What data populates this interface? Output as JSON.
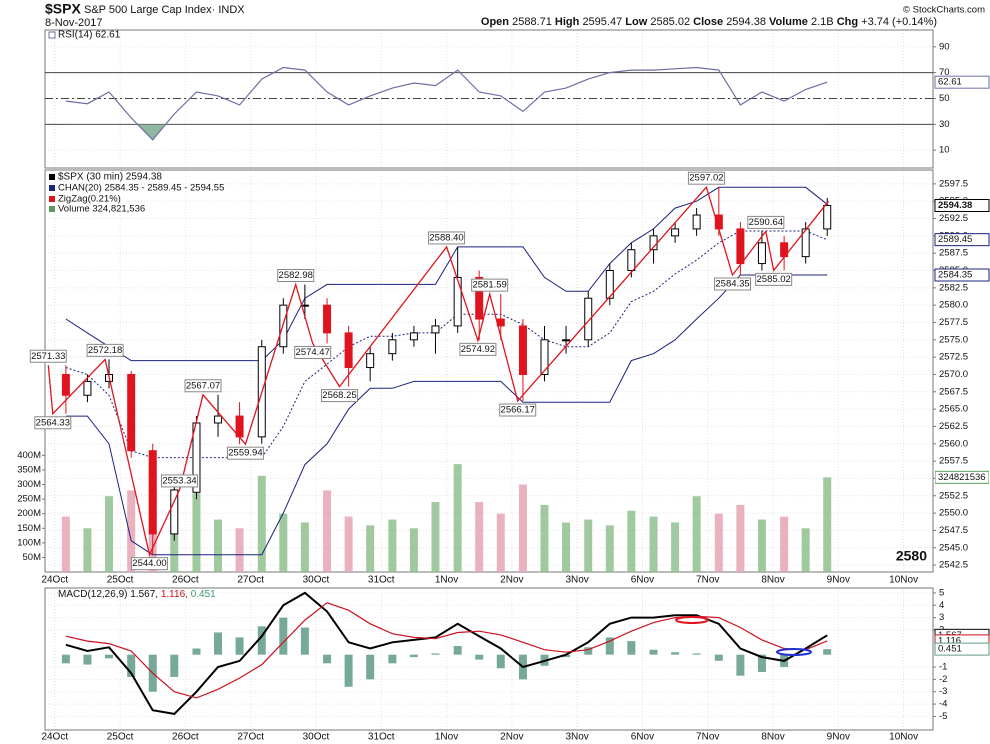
{
  "header": {
    "symbol": "$SPX",
    "name": "S&P 500 Large Cap Index· INDX",
    "date": "8-Nov-2017",
    "quote": [
      [
        "Open",
        "2588.71"
      ],
      [
        "High",
        "2595.47"
      ],
      [
        "Low",
        "2585.02"
      ],
      [
        "Close",
        "2594.38"
      ],
      [
        "Volume",
        "2.1B"
      ],
      [
        "Chg",
        "+3.74 (+0.14%)"
      ]
    ],
    "credit": "© StockCharts.com"
  },
  "chart_data": [
    {
      "type": "line",
      "x": [
        0.17,
        0.5,
        0.83,
        1.17,
        1.5,
        1.83,
        2.17,
        2.5,
        2.83,
        3.17,
        3.5,
        3.83,
        4.17,
        4.5,
        4.83,
        5.17,
        5.5,
        5.83,
        6.17,
        6.5,
        6.83,
        7.17,
        7.5,
        7.83,
        8.17,
        8.5,
        8.83,
        9.17,
        9.5,
        9.83,
        10.17,
        10.5,
        10.83,
        11.17,
        11.5,
        11.83
      ],
      "xlim": [
        -0.15,
        13.45
      ],
      "series": [
        {
          "name": "RSI(14) 62.61",
          "color": "#6c6fa3",
          "values": [
            48,
            46,
            55,
            35,
            18,
            38,
            55,
            52,
            45,
            65,
            74,
            72,
            55,
            45,
            52,
            58,
            62,
            60,
            72,
            55,
            52,
            40,
            55,
            58,
            65,
            70,
            72,
            72,
            73,
            74,
            72,
            45,
            55,
            48,
            57,
            62.61
          ]
        }
      ],
      "ylim": [
        -3.8,
        103
      ],
      "yticks": [
        90,
        70,
        50,
        30,
        10
      ],
      "reference_lines": [
        {
          "value": 70,
          "dash": false
        },
        {
          "value": 50,
          "dash": true
        },
        {
          "value": 30,
          "dash": false
        }
      ],
      "oversold_fill_color": "#8fb8a0",
      "grid": true
    },
    {
      "type": "candlestick",
      "name": "$SPX (30 min) 2594.38",
      "x": [
        0.17,
        0.5,
        0.83,
        1.17,
        1.5,
        1.83,
        2.17,
        2.5,
        2.83,
        3.17,
        3.5,
        3.83,
        4.17,
        4.5,
        4.83,
        5.17,
        5.5,
        5.83,
        6.17,
        6.5,
        6.83,
        7.17,
        7.5,
        7.83,
        8.17,
        8.5,
        8.83,
        9.17,
        9.5,
        9.83,
        10.17,
        10.5,
        10.83,
        11.17,
        11.5,
        11.83
      ],
      "xlim": [
        -0.15,
        13.45
      ],
      "xticks": [
        {
          "value": 0,
          "label": "24Oct"
        },
        {
          "value": 1,
          "label": "25Oct"
        },
        {
          "value": 2,
          "label": "26Oct"
        },
        {
          "value": 3,
          "label": "27Oct"
        },
        {
          "value": 4,
          "label": "30Oct"
        },
        {
          "value": 5,
          "label": "31Oct"
        },
        {
          "value": 6,
          "label": "1Nov"
        },
        {
          "value": 7,
          "label": "2Nov"
        },
        {
          "value": 8,
          "label": "3Nov"
        },
        {
          "value": 9,
          "label": "6Nov"
        },
        {
          "value": 10,
          "label": "7Nov"
        },
        {
          "value": 11,
          "label": "8Nov"
        },
        {
          "value": 12,
          "label": "9Nov"
        },
        {
          "value": 13,
          "label": "10Nov"
        }
      ],
      "open": [
        2570,
        2567,
        2569,
        2570,
        2559,
        2547,
        2553,
        2563,
        2564,
        2561,
        2574,
        2580,
        2580,
        2576,
        2571,
        2573,
        2575,
        2576,
        2577,
        2584,
        2578,
        2577,
        2570,
        2575,
        2575,
        2581,
        2585,
        2588,
        2590,
        2591,
        2593,
        2591,
        2586,
        2589,
        2587,
        2591
      ],
      "high": [
        2571.33,
        2570,
        2572.18,
        2570.5,
        2560,
        2555,
        2564,
        2567.07,
        2566,
        2575,
        2581,
        2582.98,
        2581,
        2577,
        2574,
        2576,
        2577,
        2578,
        2588.4,
        2585,
        2581.59,
        2578,
        2577,
        2577,
        2582,
        2586,
        2589,
        2591,
        2592,
        2594,
        2597.02,
        2592,
        2590.64,
        2590,
        2592,
        2595.47
      ],
      "low": [
        2564.33,
        2566,
        2568,
        2558,
        2544,
        2546,
        2552,
        2561,
        2559.94,
        2560,
        2573,
        2578,
        2574.47,
        2568.25,
        2569,
        2572,
        2574,
        2573,
        2576,
        2574.92,
        2575,
        2566.17,
        2569,
        2573,
        2574,
        2580,
        2584,
        2586,
        2589,
        2590,
        2590,
        2584.35,
        2585,
        2585.02,
        2586,
        2590
      ],
      "close": [
        2567,
        2569,
        2570,
        2559,
        2547,
        2553.34,
        2563,
        2564,
        2561,
        2574,
        2580,
        2580,
        2576,
        2571,
        2573,
        2575,
        2576,
        2577,
        2584,
        2578,
        2577,
        2570,
        2575,
        2575,
        2581,
        2585,
        2588,
        2590,
        2591,
        2593,
        2591,
        2586,
        2589,
        2587,
        2591,
        2594.38
      ],
      "up_color": "#000000",
      "down_color": "#e0141e",
      "ylim": [
        2541.5,
        2599.5
      ],
      "yticks": [
        2597.5,
        {
          "value": 2595,
          "label": "2595.0"
        },
        2592.5,
        {
          "value": 2590,
          "label": "2590.0"
        },
        2587.5,
        {
          "value": 2585,
          "label": "2585.0"
        },
        2582.5,
        {
          "value": 2580,
          "label": "2580.0"
        },
        2577.5,
        {
          "value": 2575,
          "label": "2575.0"
        },
        2572.5,
        {
          "value": 2570,
          "label": "2570.0"
        },
        2567.5,
        {
          "value": 2565,
          "label": "2565.0"
        },
        2562.5,
        {
          "value": 2560,
          "label": "2560.0"
        },
        2557.5,
        {
          "value": 2555,
          "label": "2555.0"
        },
        2552.5,
        {
          "value": 2550,
          "label": "2550.0"
        },
        2547.5,
        {
          "value": 2545,
          "label": "2545.0"
        },
        2542.5
      ],
      "grid": true,
      "channel": {
        "name": "CHAN(20) 2584.35 - 2589.45 - 2594.55",
        "color": "#1a237e",
        "upper": [
          2578,
          2576,
          2574,
          2572,
          2572,
          2572,
          2572,
          2572,
          2572,
          2572,
          2575,
          2581,
          2583,
          2583,
          2583,
          2583,
          2583,
          2583,
          2588.4,
          2588.4,
          2588.4,
          2588.4,
          2584,
          2582,
          2582,
          2586,
          2589,
          2591,
          2594,
          2595,
          2597,
          2597,
          2597,
          2597,
          2597,
          2594.55
        ],
        "middle": [
          2571,
          2570,
          2567,
          2559,
          2558,
          2558,
          2558,
          2558,
          2558,
          2558,
          2562.5,
          2569,
          2571.5,
          2574,
          2575.5,
          2575.5,
          2576,
          2576,
          2578.7,
          2578.7,
          2578.7,
          2577.2,
          2575,
          2574,
          2574,
          2576,
          2580.5,
          2582,
          2584.5,
          2586.5,
          2589,
          2590.7,
          2590.7,
          2590.7,
          2590.7,
          2589.45
        ],
        "lower": [
          2564,
          2564,
          2560,
          2546,
          2544,
          2544,
          2544,
          2544,
          2544,
          2544,
          2550,
          2557,
          2560,
          2565,
          2568,
          2568,
          2569,
          2569,
          2569,
          2569,
          2569,
          2566,
          2566,
          2566,
          2566,
          2566,
          2572,
          2573,
          2575,
          2578,
          2581,
          2584.35,
          2584.35,
          2584.35,
          2584.35,
          2584.35
        ]
      },
      "zigzag": {
        "name": "ZigZag(0.21%)",
        "color": "#e0141e",
        "x": [
          -0.1,
          -0.03,
          0.77,
          1.45,
          1.91,
          2.27,
          2.92,
          3.69,
          3.95,
          4.36,
          6.0,
          6.48,
          6.66,
          7.09,
          9.98,
          10.38,
          10.89,
          11.01,
          11.85
        ],
        "values": [
          2571.33,
          2564.33,
          2572.18,
          2544,
          2553.34,
          2567.07,
          2559.94,
          2582.98,
          2574.47,
          2568.25,
          2588.4,
          2574.92,
          2581.59,
          2566.17,
          2597.02,
          2584.35,
          2590.64,
          2585.02,
          2595
        ],
        "value_labels": [
          "2571.33",
          "2564.33",
          "2572.18",
          "2544.00",
          "2553.34",
          "2567.07",
          "2559.94",
          "2582.98",
          "2574.47",
          "2568.25",
          "2588.40",
          "2574.92",
          "2581.59",
          "2566.17",
          "2597.02",
          "2584.35",
          "2590.64",
          "2585.02",
          null
        ]
      },
      "volume": {
        "name": "Volume 324,821,536",
        "up_color": "#8fbf8f",
        "down_color": "#e6a3b4",
        "values": [
          190000000,
          150000000,
          260000000,
          280000000,
          380000000,
          240000000,
          270000000,
          180000000,
          150000000,
          330000000,
          200000000,
          170000000,
          280000000,
          190000000,
          160000000,
          180000000,
          150000000,
          240000000,
          370000000,
          240000000,
          200000000,
          300000000,
          230000000,
          170000000,
          180000000,
          160000000,
          210000000,
          190000000,
          170000000,
          260000000,
          200000000,
          230000000,
          180000000,
          190000000,
          150000000,
          324821536
        ],
        "ylim": [
          0,
          1379000000
        ],
        "yticks": [
          {
            "value": 400000000,
            "label": "400M"
          },
          {
            "value": 350000000,
            "label": "350M"
          },
          {
            "value": 300000000,
            "label": "300M"
          },
          {
            "value": 250000000,
            "label": "250M"
          },
          {
            "value": 200000000,
            "label": "200M"
          },
          {
            "value": 150000000,
            "label": "150M"
          },
          {
            "value": 100000000,
            "label": "100M"
          },
          {
            "value": 50000000,
            "label": "50M"
          }
        ]
      },
      "annotation": "2580"
    },
    {
      "type": "line",
      "legend": [
        "MACD(12,26,9) 1.567,",
        "1.116,",
        "0.451"
      ],
      "x": [
        0.17,
        0.5,
        0.83,
        1.17,
        1.5,
        1.83,
        2.17,
        2.5,
        2.83,
        3.17,
        3.5,
        3.83,
        4.17,
        4.5,
        4.83,
        5.17,
        5.5,
        5.83,
        6.17,
        6.5,
        6.83,
        7.17,
        7.5,
        7.83,
        8.17,
        8.5,
        8.83,
        9.17,
        9.5,
        9.83,
        10.17,
        10.5,
        10.83,
        11.17,
        11.5,
        11.83
      ],
      "xlim": [
        -0.15,
        13.45
      ],
      "xticks": [
        {
          "value": 0,
          "label": "24Oct"
        },
        {
          "value": 1,
          "label": "25Oct"
        },
        {
          "value": 2,
          "label": "26Oct"
        },
        {
          "value": 3,
          "label": "27Oct"
        },
        {
          "value": 4,
          "label": "30Oct"
        },
        {
          "value": 5,
          "label": "31Oct"
        },
        {
          "value": 6,
          "label": "1Nov"
        },
        {
          "value": 7,
          "label": "2Nov"
        },
        {
          "value": 8,
          "label": "3Nov"
        },
        {
          "value": 9,
          "label": "6Nov"
        },
        {
          "value": 10,
          "label": "7Nov"
        },
        {
          "value": 11,
          "label": "8Nov"
        },
        {
          "value": 12,
          "label": "9Nov"
        },
        {
          "value": 13,
          "label": "10Nov"
        }
      ],
      "series": [
        {
          "color": "#000000",
          "values": [
            0.8,
            0.3,
            0.6,
            -1.5,
            -4.5,
            -4.8,
            -3,
            -1,
            -0.5,
            1.5,
            4,
            5,
            3.5,
            1,
            0.5,
            1,
            1.2,
            1.4,
            2.5,
            1.5,
            0.5,
            -1,
            -0.5,
            0,
            1,
            2.5,
            3,
            3,
            3.2,
            3.2,
            2.5,
            0.5,
            -0.2,
            -0.5,
            0.5,
            1.567
          ]
        },
        {
          "color": "#cc1020",
          "values": [
            1.5,
            1.1,
            0.9,
            0.3,
            -1.5,
            -3,
            -3.5,
            -2.8,
            -1.9,
            -0.8,
            1,
            2.8,
            4.2,
            3.6,
            2.5,
            1.7,
            1.4,
            1.3,
            1.8,
            1.9,
            1.6,
            1,
            0.4,
            0.2,
            0.4,
            1.1,
            1.9,
            2.6,
            3,
            3.1,
            3,
            2.2,
            1.2,
            0.5,
            0.4,
            1.116
          ]
        },
        {
          "color": "#5f9a86",
          "values": [
            -0.7,
            -0.8,
            -0.3,
            -1.8,
            -3,
            -1.8,
            0.5,
            1.8,
            1.4,
            2.3,
            3,
            2.2,
            -0.7,
            -2.6,
            -2,
            -0.7,
            -0.2,
            0.1,
            0.7,
            -0.4,
            -1.1,
            -2,
            -0.9,
            -0.2,
            0.6,
            1.4,
            1.1,
            0.4,
            0.2,
            0.1,
            -0.5,
            -1.7,
            -1.4,
            -1,
            0.1,
            0.451
          ]
        }
      ],
      "ylim": [
        -6.1,
        5.4
      ],
      "yticks": [
        5,
        4,
        3,
        2,
        -1,
        -2,
        -3,
        -4,
        -5
      ],
      "grid": true
    }
  ]
}
